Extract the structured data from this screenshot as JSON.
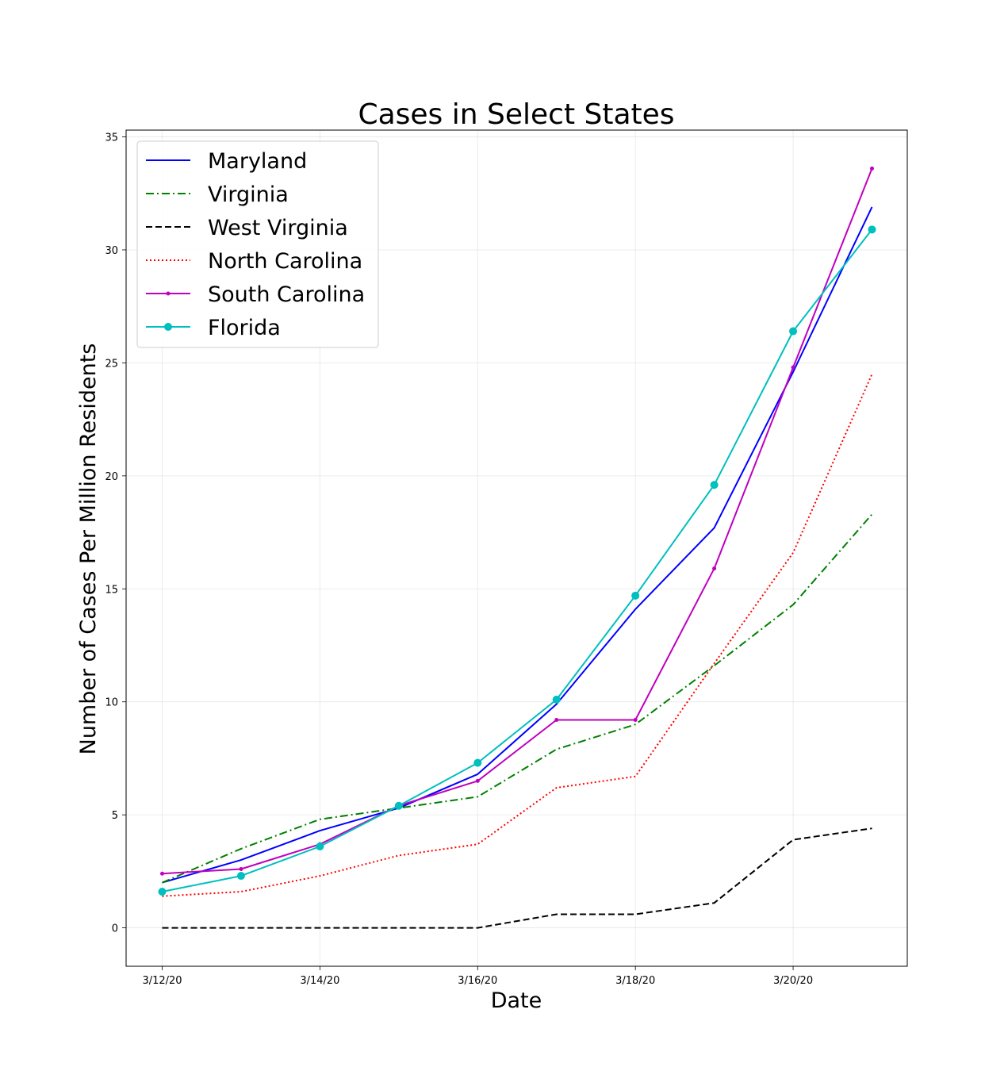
{
  "chart_data": {
    "type": "line",
    "title": "Cases in Select States",
    "xlabel": "Date",
    "ylabel": "Number of Cases Per Million Residents",
    "x": [
      "3/12/20",
      "3/13/20",
      "3/14/20",
      "3/15/20",
      "3/16/20",
      "3/17/20",
      "3/18/20",
      "3/19/20",
      "3/20/20",
      "3/21/20"
    ],
    "xticks": [
      "3/12/20",
      "3/14/20",
      "3/16/20",
      "3/18/20",
      "3/20/20"
    ],
    "yticks": [
      0,
      5,
      10,
      15,
      20,
      25,
      30,
      35
    ],
    "ylim": [
      -1.7,
      35.3
    ],
    "grid": true,
    "legend_position": "top-left",
    "series": [
      {
        "name": "Maryland",
        "color": "#0000ff",
        "style": "solid",
        "marker": "none",
        "values": [
          2.0,
          3.0,
          4.3,
          5.3,
          6.8,
          9.9,
          14.1,
          17.7,
          24.6,
          31.9
        ]
      },
      {
        "name": "Virginia",
        "color": "#008000",
        "style": "dashdot",
        "marker": "none",
        "values": [
          2.0,
          3.5,
          4.8,
          5.3,
          5.8,
          7.9,
          9.0,
          11.6,
          14.3,
          18.3
        ]
      },
      {
        "name": "West Virginia",
        "color": "#000000",
        "style": "dashed",
        "marker": "none",
        "values": [
          0.0,
          0.0,
          0.0,
          0.0,
          0.0,
          0.6,
          0.6,
          1.1,
          3.9,
          4.4
        ]
      },
      {
        "name": "North Carolina",
        "color": "#ff0000",
        "style": "dotted",
        "marker": "none",
        "values": [
          1.4,
          1.6,
          2.3,
          3.2,
          3.7,
          6.2,
          6.7,
          11.7,
          16.6,
          24.5
        ]
      },
      {
        "name": "South Carolina",
        "color": "#bf00bf",
        "style": "solid",
        "marker": "point",
        "values": [
          2.4,
          2.6,
          3.7,
          5.4,
          6.5,
          9.2,
          9.2,
          15.9,
          24.8,
          33.6
        ]
      },
      {
        "name": "Florida",
        "color": "#00bfbf",
        "style": "solid",
        "marker": "circle",
        "values": [
          1.6,
          2.3,
          3.6,
          5.4,
          7.3,
          10.1,
          14.7,
          19.6,
          26.4,
          30.9
        ]
      }
    ]
  }
}
